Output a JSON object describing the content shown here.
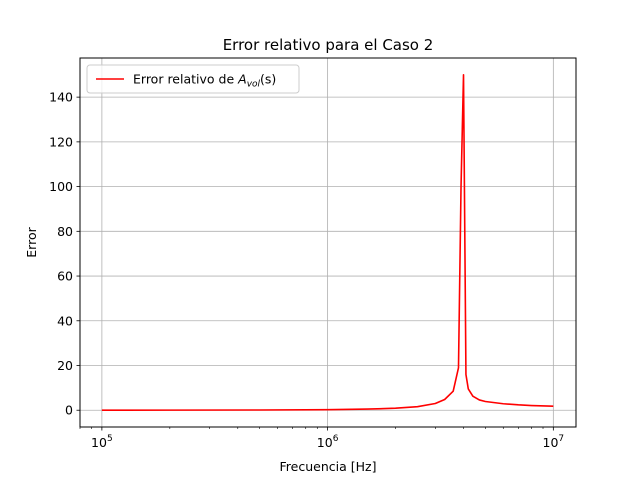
{
  "chart_data": {
    "type": "line",
    "title": "Error relativo para el Caso 2",
    "xlabel": "Frecuencia [Hz]",
    "ylabel": "Error",
    "x_scale": "log",
    "xlim": [
      80000,
      12600000
    ],
    "ylim": [
      -7.5,
      157.5
    ],
    "x_major_ticks": [
      100000,
      1000000,
      10000000
    ],
    "x_tick_labels": [
      {
        "base": "10",
        "exp": "5"
      },
      {
        "base": "10",
        "exp": "6"
      },
      {
        "base": "10",
        "exp": "7"
      }
    ],
    "y_ticks": [
      0,
      20,
      40,
      60,
      80,
      100,
      120,
      140
    ],
    "y_tick_labels": [
      "0",
      "20",
      "40",
      "60",
      "80",
      "100",
      "120",
      "140"
    ],
    "grid": true,
    "legend_position": "upper-left",
    "legend": {
      "prefix": "Error relativo de ",
      "symbol": "A",
      "subscript": "vol",
      "suffix": "(s)"
    },
    "series": [
      {
        "color": "#ff0000",
        "x": [
          100000,
          200000,
          500000,
          1000000,
          1500000,
          2000000,
          2500000,
          3000000,
          3300000,
          3600000,
          3800000,
          3900000,
          4000000,
          4100000,
          4200000,
          4400000,
          4700000,
          5000000,
          6000000,
          7000000,
          8000000,
          10000000
        ],
        "y": [
          0.02,
          0.05,
          0.1,
          0.25,
          0.5,
          0.9,
          1.6,
          3.0,
          4.8,
          8.5,
          19.0,
          100.0,
          150.0,
          16.0,
          9.5,
          6.3,
          4.6,
          3.9,
          2.9,
          2.4,
          2.1,
          1.8
        ]
      }
    ]
  }
}
